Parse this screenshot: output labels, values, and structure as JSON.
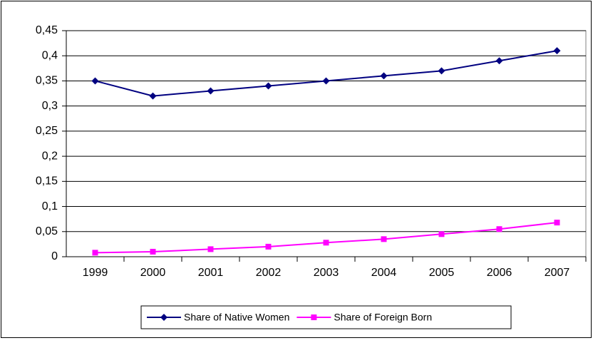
{
  "chart_data": {
    "type": "line",
    "categories": [
      "1999",
      "2000",
      "2001",
      "2002",
      "2003",
      "2004",
      "2005",
      "2006",
      "2007"
    ],
    "series": [
      {
        "name": "Share of Native Women",
        "color": "#000080",
        "marker": "diamond",
        "values": [
          0.35,
          0.32,
          0.33,
          0.34,
          0.35,
          0.36,
          0.37,
          0.39,
          0.41
        ]
      },
      {
        "name": "Share of Foreign Born",
        "color": "#ff00ff",
        "marker": "square",
        "values": [
          0.008,
          0.01,
          0.015,
          0.02,
          0.028,
          0.035,
          0.045,
          0.055,
          0.068
        ]
      }
    ],
    "ylim": [
      0,
      0.45
    ],
    "yticks": [
      0,
      {
        "value": 0.05,
        "label": "0,05"
      },
      {
        "value": 0.1,
        "label": "0,1"
      },
      {
        "value": 0.15,
        "label": "0,15"
      },
      {
        "value": 0.2,
        "label": "0,2"
      },
      {
        "value": 0.25,
        "label": "0,25"
      },
      {
        "value": 0.3,
        "label": "0,3"
      },
      {
        "value": 0.35,
        "label": "0,35"
      },
      {
        "value": 0.4,
        "label": "0,4"
      },
      {
        "value": 0.45,
        "label": "0,45"
      }
    ],
    "grid": true,
    "legend": "bottom"
  }
}
